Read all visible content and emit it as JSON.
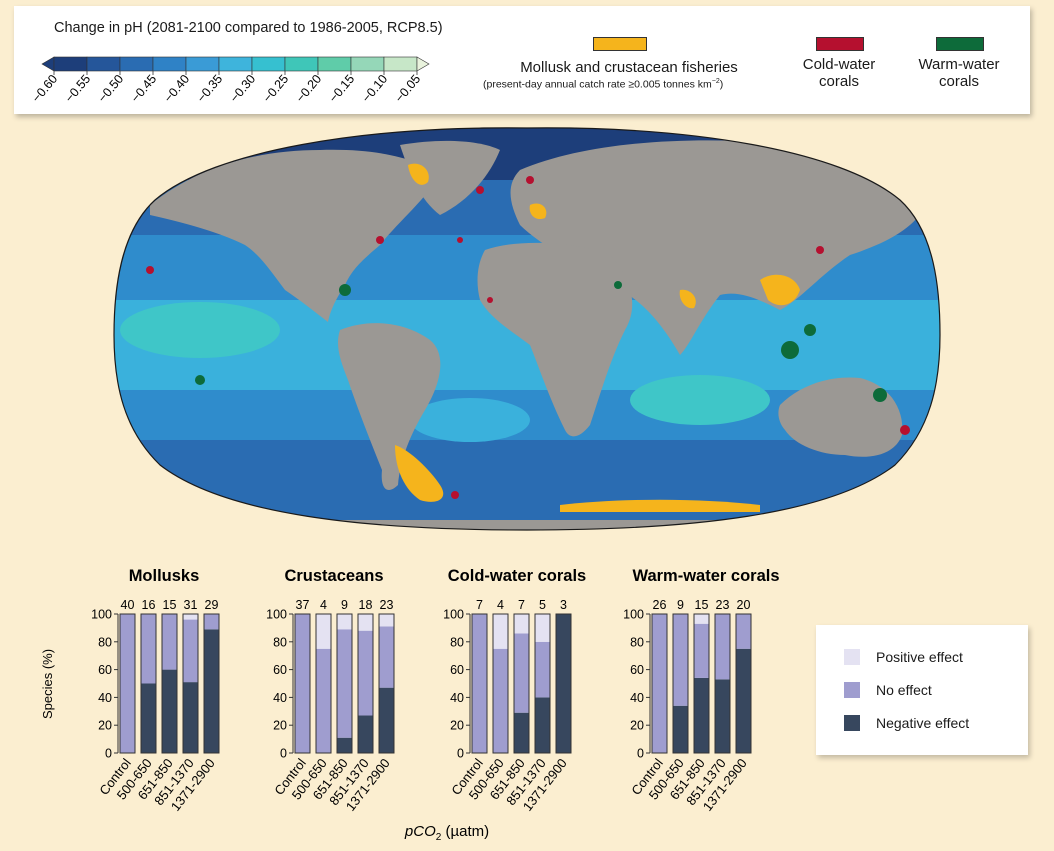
{
  "top_legend": {
    "scale_title": "Change in pH (2081-2100 compared to 1986-2005, RCP8.5)",
    "scale_ticks": [
      "−0.60",
      "−0.55",
      "−0.50",
      "−0.45",
      "−0.40",
      "−0.35",
      "−0.30",
      "−0.25",
      "−0.20",
      "−0.15",
      "−0.10",
      "−0.05"
    ],
    "scale_colors": [
      "#1d3e7a",
      "#25569a",
      "#2a6cb2",
      "#2f82c6",
      "#3a9bd6",
      "#3eb4dc",
      "#36c0d0",
      "#3fc6b8",
      "#5fcca9",
      "#95d7b8",
      "#c7e7c8"
    ],
    "end_color": "#e9f3dd",
    "fisheries_label": "Mollusk and crustacean fisheries",
    "fisheries_note_prefix": "(present-day annual catch rate ≥0.005 tonnes km",
    "fisheries_note_sup": "−2",
    "fisheries_note_suffix": ")",
    "fisheries_color": "#f5b41c",
    "cold_label_1": "Cold-water",
    "cold_label_2": "corals",
    "cold_color": "#b5102f",
    "warm_label_1": "Warm-water",
    "warm_label_2": "corals",
    "warm_color": "#0d6b3a"
  },
  "map": {
    "land_color": "#9b9894",
    "ocean_colors": {
      "deep": "#2a6cb2",
      "mid": "#2f8ccc",
      "light": "#3ab1dc",
      "cyan": "#3fc6c8"
    }
  },
  "effect_legend": {
    "positive_label": "Positive effect",
    "no_label": "No effect",
    "negative_label": "Negative effect",
    "positive_color": "#e4e2f2",
    "no_color": "#9f9dcf",
    "negative_color": "#37475e"
  },
  "chart_data": {
    "type": "bar",
    "stacked": true,
    "categories": [
      "Control",
      "500-650",
      "651-850",
      "851-1370",
      "1371-2900"
    ],
    "ylabel": "Species (%)",
    "ylim": [
      0,
      100
    ],
    "yticks": [
      0,
      20,
      40,
      60,
      80,
      100
    ],
    "xlabel_main": "pCO",
    "xlabel_sub": "2",
    "xlabel_unit": " (µatm)",
    "panels": [
      {
        "title": "Mollusks",
        "counts": [
          40,
          16,
          15,
          31,
          29
        ],
        "negative": [
          0,
          50,
          60,
          51,
          89
        ],
        "no_effect": [
          100,
          50,
          40,
          45,
          11
        ],
        "positive": [
          0,
          0,
          0,
          4,
          0
        ]
      },
      {
        "title": "Crustaceans",
        "counts": [
          37,
          4,
          9,
          18,
          23
        ],
        "negative": [
          0,
          0,
          11,
          27,
          47
        ],
        "no_effect": [
          100,
          75,
          78,
          61,
          44
        ],
        "positive": [
          0,
          25,
          11,
          12,
          9
        ]
      },
      {
        "title": "Cold-water corals",
        "counts": [
          7,
          4,
          7,
          5,
          3
        ],
        "negative": [
          0,
          0,
          29,
          40,
          100
        ],
        "no_effect": [
          100,
          75,
          57,
          40,
          0
        ],
        "positive": [
          0,
          25,
          14,
          20,
          0
        ]
      },
      {
        "title": "Warm-water corals",
        "counts": [
          26,
          9,
          15,
          23,
          20
        ],
        "negative": [
          0,
          34,
          54,
          53,
          75
        ],
        "no_effect": [
          100,
          66,
          39,
          47,
          25
        ],
        "positive": [
          0,
          0,
          7,
          0,
          0
        ]
      }
    ]
  }
}
